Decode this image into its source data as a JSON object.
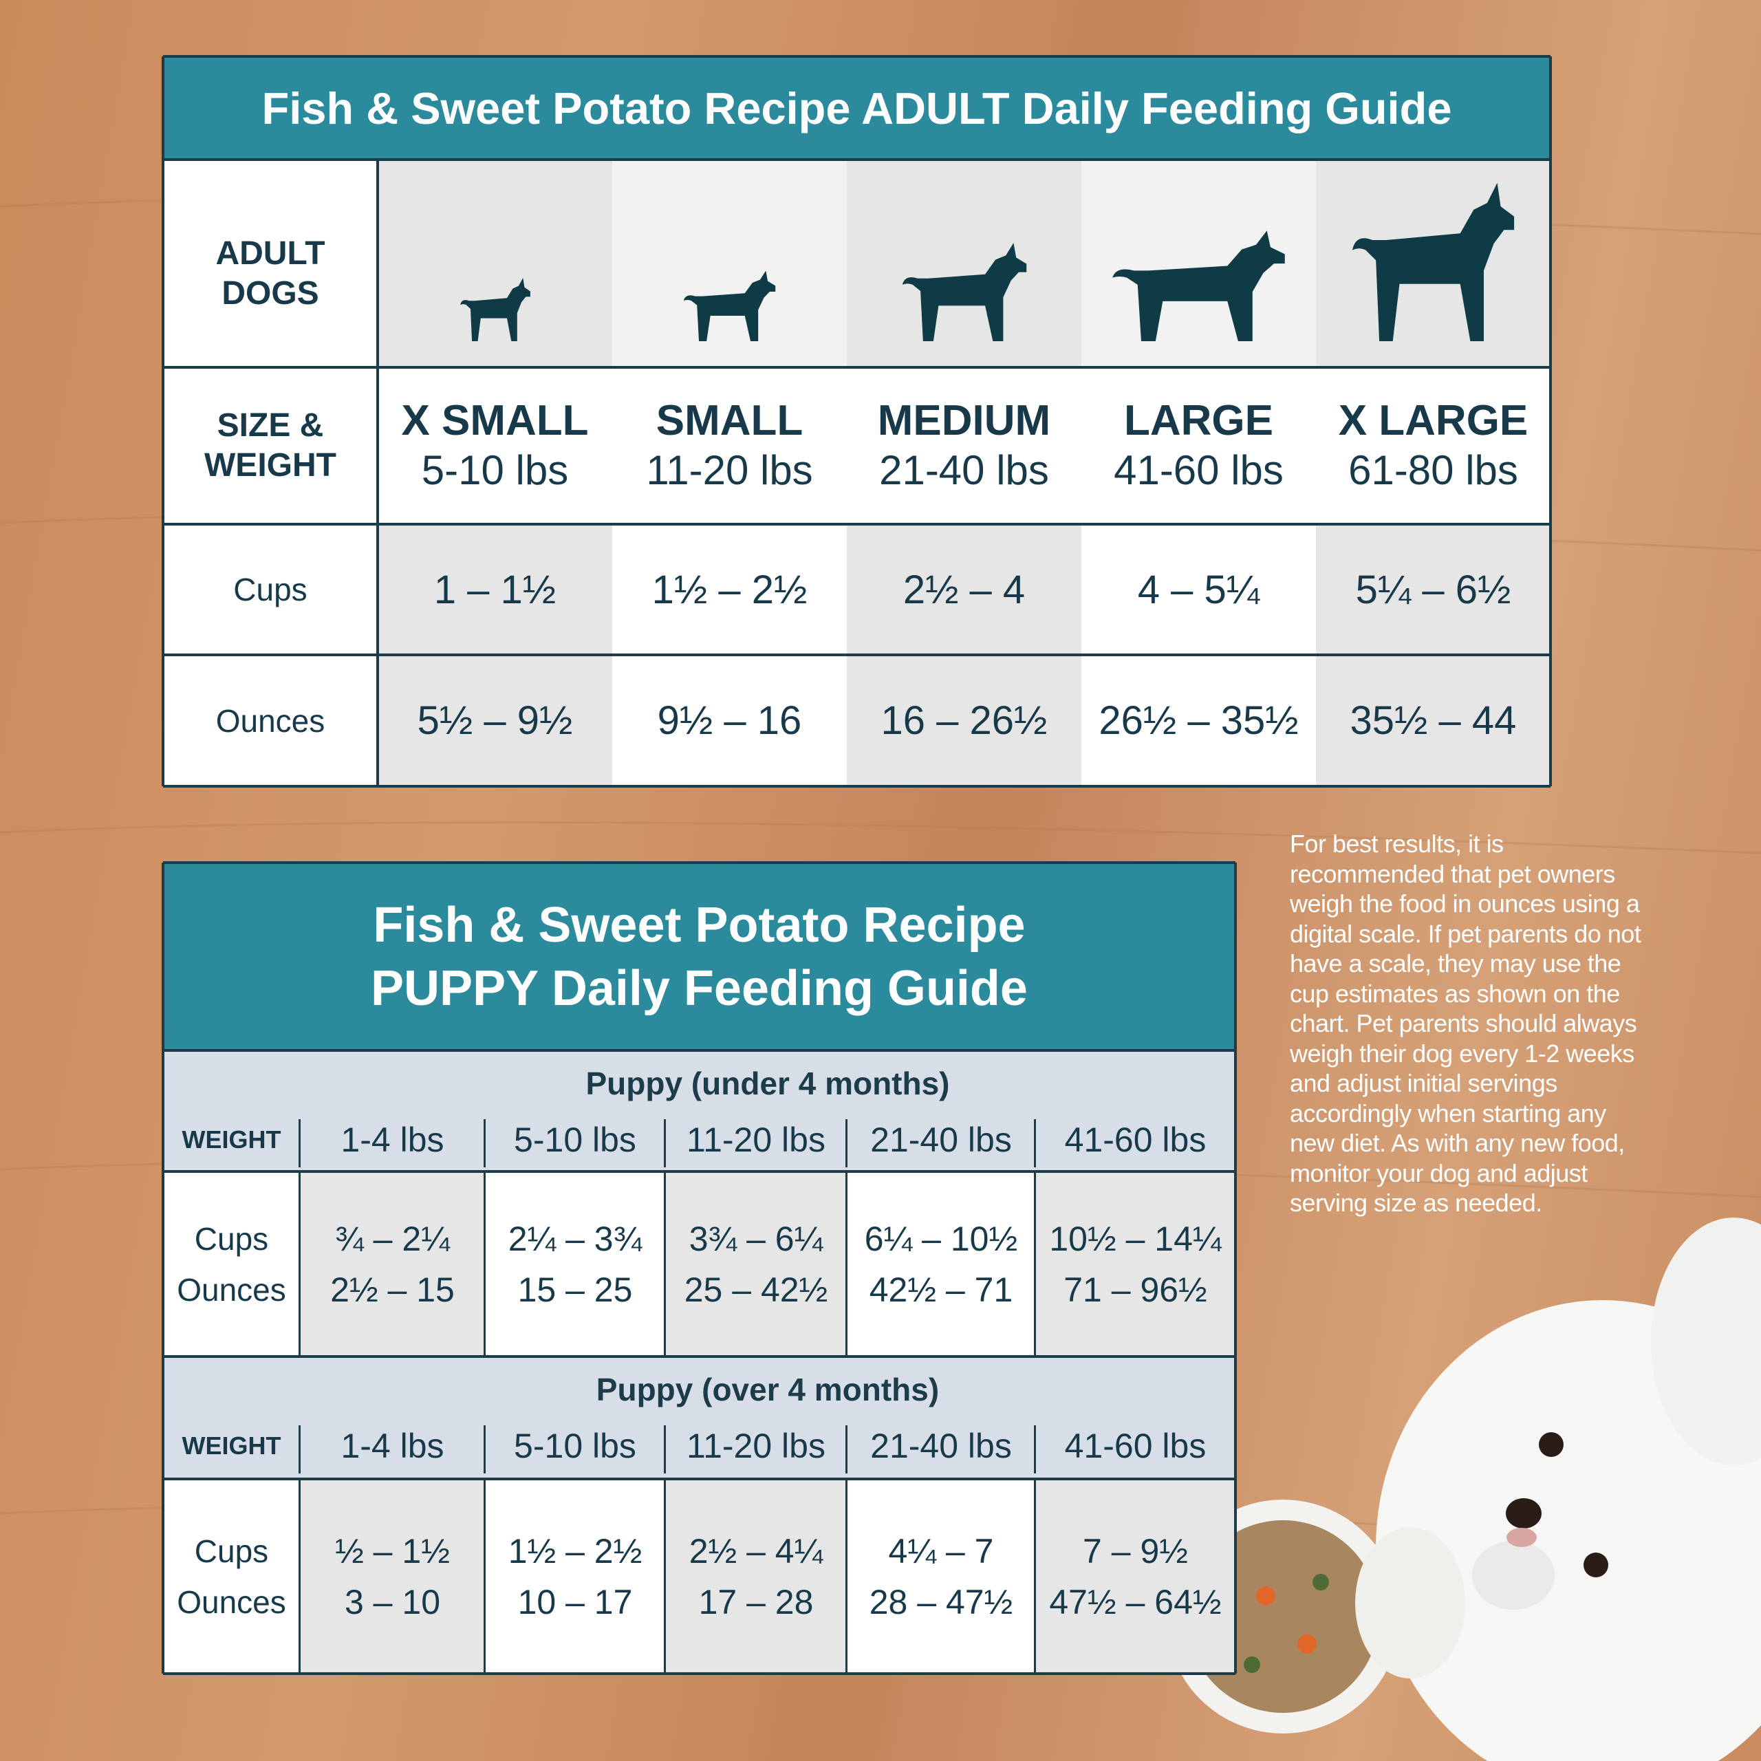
{
  "adult": {
    "title": "Fish & Sweet Potato Recipe ADULT Daily Feeding Guide",
    "header_label": "ADULT DOGS",
    "size_label": "SIZE & WEIGHT",
    "sizes": [
      {
        "name": "X SMALL",
        "weight": "5-10 lbs"
      },
      {
        "name": "SMALL",
        "weight": "11-20 lbs"
      },
      {
        "name": "MEDIUM",
        "weight": "21-40 lbs"
      },
      {
        "name": "LARGE",
        "weight": "41-60 lbs"
      },
      {
        "name": "X LARGE",
        "weight": "61-80 lbs"
      }
    ],
    "rows": [
      {
        "label": "Cups",
        "values": [
          "1 – 1½",
          "1½ – 2½",
          "2½ – 4",
          "4 – 5¼",
          "5¼ – 6½"
        ]
      },
      {
        "label": "Ounces",
        "values": [
          "5½ – 9½",
          "9½ – 16",
          "16 – 26½",
          "26½ – 35½",
          "35½ – 44"
        ]
      }
    ]
  },
  "puppy": {
    "title": [
      "Fish & Sweet Potato Recipe",
      "PUPPY Daily Feeding Guide"
    ],
    "sections": [
      {
        "heading": "Puppy (under 4 months)",
        "weight_label": "WEIGHT",
        "weights": [
          "1-4 lbs",
          "5-10 lbs",
          "11-20 lbs",
          "21-40 lbs",
          "41-60 lbs"
        ],
        "row_labels": [
          "Cups",
          "Ounces"
        ],
        "cups": [
          "¾ – 2¼",
          "2¼ – 3¾",
          "3¾ – 6¼",
          "6¼ – 10½",
          "10½ – 14¼"
        ],
        "ounces": [
          "2½ – 15",
          "15 – 25",
          "25 – 42½",
          "42½ – 71",
          "71 – 96½"
        ]
      },
      {
        "heading": "Puppy (over 4 months)",
        "weight_label": "WEIGHT",
        "weights": [
          "1-4 lbs",
          "5-10 lbs",
          "11-20 lbs",
          "21-40 lbs",
          "41-60 lbs"
        ],
        "row_labels": [
          "Cups",
          "Ounces"
        ],
        "cups": [
          "½ – 1½",
          "1½ – 2½",
          "2½ – 4¼",
          "4¼ – 7",
          "7 – 9½"
        ],
        "ounces": [
          "3 – 10",
          "10 – 17",
          "17 – 28",
          "28 – 47½",
          "47½ – 64½"
        ]
      }
    ]
  },
  "note": "For best results, it is recommended that pet owners weigh the food in ounces using a digital scale. If pet parents do not have a scale, they may use the cup estimates as shown on the chart. Pet parents should always weigh their dog every 1-2 weeks and adjust initial servings accordingly when starting any new diet. As with any new food, monitor your dog and adjust serving size as needed."
}
